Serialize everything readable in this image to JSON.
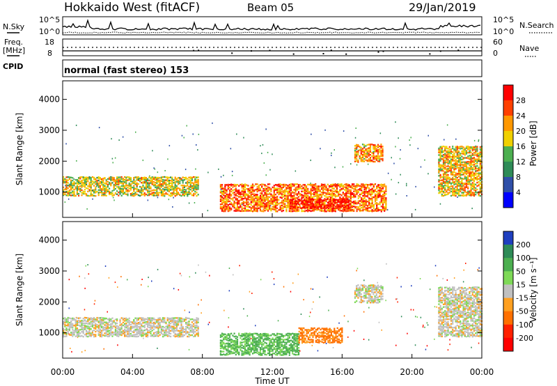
{
  "header": {
    "station": "Hokkaido West (fitACF)",
    "beam": "Beam 05",
    "date": "29/Jan/2019"
  },
  "sky_panel": {
    "left_label": "N.Sky",
    "right_label": "N.Search",
    "left_ticks": [
      "10^5",
      "10^0"
    ],
    "right_ticks": [
      "10^5",
      "10^0"
    ]
  },
  "freq_panel": {
    "left_label_1": "Freq.",
    "left_label_2": "[MHz]",
    "left_ticks": [
      "18",
      "8"
    ],
    "right_label": "Nave",
    "right_ticks": [
      "60",
      "0"
    ]
  },
  "cpid_panel": {
    "label": "CPID",
    "mode_text": "normal (fast stereo) 153"
  },
  "x_axis": {
    "label": "Time UT",
    "ticks": [
      "00:00",
      "04:00",
      "08:00",
      "12:00",
      "16:00",
      "20:00",
      "00:00"
    ]
  },
  "power_panel": {
    "ylabel": "Slant Range [km]",
    "yticks": [
      "1000",
      "2000",
      "3000",
      "4000"
    ],
    "colorbar_label": "Power [dB]",
    "colorbar_ticks": [
      "4",
      "8",
      "12",
      "16",
      "20",
      "24",
      "28"
    ],
    "colors": [
      "#0000ff",
      "#2f4fa8",
      "#2e8b57",
      "#4caf50",
      "#f0d000",
      "#ff9800",
      "#ff4000",
      "#ff0000"
    ]
  },
  "velocity_panel": {
    "ylabel": "Slant Range [km]",
    "yticks": [
      "1000",
      "2000",
      "3000",
      "4000"
    ],
    "colorbar_label": "Velocity [m s⁻¹]",
    "colorbar_ticks": [
      "200",
      "100",
      "50",
      "15",
      "-15",
      "-50",
      "-100",
      "-200"
    ],
    "colors": [
      "#1f3fbf",
      "#2e8b57",
      "#4caf50",
      "#7ed957",
      "#c0c0c0",
      "#ffa020",
      "#ff7000",
      "#ff2000",
      "#ff0000"
    ]
  },
  "chart_data": [
    {
      "type": "heatmap",
      "title": "Power",
      "xlabel": "Time UT",
      "ylabel": "Slant Range [km]",
      "xlim": [
        0,
        24
      ],
      "ylim": [
        180,
        4600
      ],
      "colorbar": {
        "label": "Power [dB]",
        "range": [
          0,
          32
        ]
      },
      "regions": [
        {
          "t_start": 0.0,
          "t_end": 7.8,
          "range_low": 900,
          "range_high": 1550,
          "power_db": 18
        },
        {
          "t_start": 9.0,
          "t_end": 18.5,
          "range_low": 400,
          "range_high": 1300,
          "power_db": 24
        },
        {
          "t_start": 13.0,
          "t_end": 16.5,
          "range_low": 500,
          "range_high": 800,
          "power_db": 30
        },
        {
          "t_start": 16.7,
          "t_end": 18.3,
          "range_low": 2000,
          "range_high": 2600,
          "power_db": 22
        },
        {
          "t_start": 21.5,
          "t_end": 24.0,
          "range_low": 900,
          "range_high": 2500,
          "power_db": 20
        }
      ]
    },
    {
      "type": "heatmap",
      "title": "Velocity",
      "xlabel": "Time UT",
      "ylabel": "Slant Range [km]",
      "xlim": [
        0,
        24
      ],
      "ylim": [
        180,
        4600
      ],
      "colorbar": {
        "label": "Velocity [m s⁻¹]",
        "range": [
          -250,
          250
        ]
      },
      "regions": [
        {
          "t_start": 0.0,
          "t_end": 7.8,
          "range_low": 900,
          "range_high": 1550,
          "velocity": 0
        },
        {
          "t_start": 9.0,
          "t_end": 13.5,
          "range_low": 300,
          "range_high": 1000,
          "velocity": 60
        },
        {
          "t_start": 13.5,
          "t_end": 16.0,
          "range_low": 700,
          "range_high": 1200,
          "velocity": -60
        },
        {
          "t_start": 16.7,
          "t_end": 18.3,
          "range_low": 2000,
          "range_high": 2600,
          "velocity": 0
        },
        {
          "t_start": 21.5,
          "t_end": 24.0,
          "range_low": 900,
          "range_high": 2500,
          "velocity": 0
        }
      ]
    }
  ]
}
